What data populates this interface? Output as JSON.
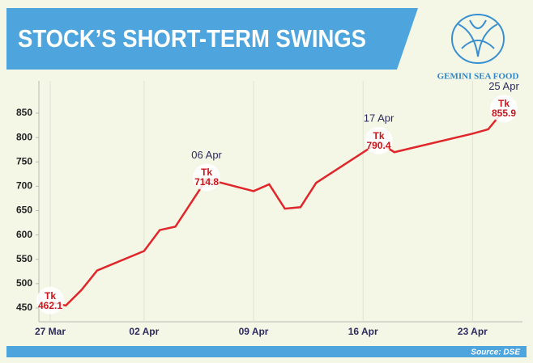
{
  "chart_data": {
    "type": "line",
    "title": "STOCK’S SHORT-TERM SWINGS",
    "logo_text": "GEMINI SEA FOOD",
    "source": "Source: DSE",
    "x": [
      "27 Mar",
      "28 Mar",
      "29 Mar",
      "30 Mar",
      "02 Apr",
      "03 Apr",
      "04 Apr",
      "06 Apr",
      "09 Apr",
      "10 Apr",
      "11 Apr",
      "12 Apr",
      "13 Apr",
      "17 Apr",
      "18 Apr",
      "23 Apr",
      "24 Apr",
      "25 Apr"
    ],
    "series": [
      {
        "color": "#e0262a",
        "values": [
          462.1,
          455,
          487,
          527,
          567,
          610,
          617,
          714.8,
          690,
          704,
          654,
          657,
          707,
          790.4,
          770,
          808,
          817,
          855.9
        ],
        "value_labels": [
          "Tk 462.1",
          null,
          null,
          null,
          null,
          null,
          null,
          "Tk 714.8",
          null,
          null,
          null,
          null,
          null,
          "Tk 790.4",
          null,
          null,
          null,
          "Tk 855.9"
        ]
      }
    ],
    "xlim": [
      "27 Mar",
      "25 Apr"
    ],
    "xticks": [
      "27 Mar",
      "02 Apr",
      "09 Apr",
      "16 Apr",
      "23 Apr"
    ],
    "ylim": [
      430,
      870
    ],
    "yticks": [
      450,
      500,
      550,
      600,
      650,
      700,
      750,
      800,
      850
    ],
    "grid": true
  }
}
